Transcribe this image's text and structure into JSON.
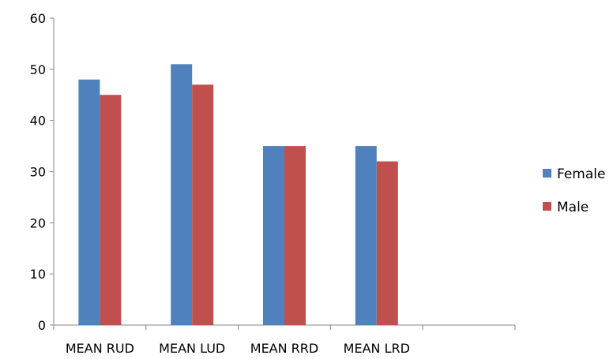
{
  "chart_data": {
    "type": "bar",
    "categories": [
      "MEAN RUD",
      "MEAN LUD",
      "MEAN RRD",
      "MEAN LRD",
      ""
    ],
    "series": [
      {
        "name": "Female",
        "color": "#4F81BD",
        "values": [
          48,
          51,
          35,
          35,
          null
        ]
      },
      {
        "name": "Male",
        "color": "#C0504D",
        "values": [
          45,
          47,
          35,
          32,
          null
        ]
      }
    ],
    "title": "",
    "xlabel": "",
    "ylabel": "",
    "ylim": [
      0,
      60
    ],
    "yticks": [
      0,
      10,
      20,
      30,
      40,
      50,
      60
    ],
    "grid": false,
    "legend_position": "right"
  }
}
